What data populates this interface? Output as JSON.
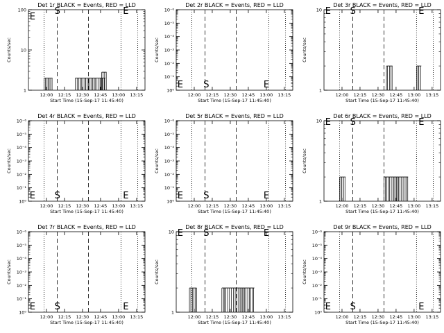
{
  "chart_data": [
    {
      "type": "line",
      "title": "Det 1r BLACK = Events, RED = LLD",
      "xlabel": "Start Time (15-Sep-17 11:45:40)",
      "ylabel": "Counts/sec",
      "scale": "log",
      "yticks": [
        "1",
        "10",
        "100"
      ],
      "xticks": [
        "12:00",
        "12:15",
        "12:30",
        "12:45",
        "13:00",
        "13:15"
      ],
      "markers": [
        {
          "label": "E",
          "x": "11:46"
        },
        {
          "label": "S",
          "x": "12:09"
        },
        {
          "label": "E",
          "x": "13:06"
        }
      ],
      "bursts": [
        {
          "from": "11:58",
          "to": "12:05",
          "y": 2
        },
        {
          "from": "12:24",
          "to": "12:49",
          "y": 2
        },
        {
          "from": "12:46",
          "to": "12:50",
          "y": 2.8
        }
      ]
    },
    {
      "type": "line",
      "title": "Det 2r BLACK = Events, RED = LLD",
      "xlabel": "Start Time (15-Sep-17 11:45:40)",
      "ylabel": "Counts/sec",
      "scale": "log",
      "yticks": [
        "10⁰",
        "10⁻¹",
        "10⁻²",
        "10⁻³",
        "10⁻⁴",
        "10⁻⁵",
        "10⁻⁶"
      ],
      "xticks": [
        "12:00",
        "12:15",
        "12:30",
        "12:45",
        "13:00",
        "13:15"
      ],
      "markers": [
        {
          "label": "E",
          "x": "11:46"
        },
        {
          "label": "S",
          "x": "12:10"
        },
        {
          "label": "E",
          "x": "13:00"
        }
      ],
      "bursts": []
    },
    {
      "type": "line",
      "title": "Det 3r BLACK = Events, RED = LLD",
      "xlabel": "Start Time (15-Sep-17 11:45:40)",
      "ylabel": "Counts/sec",
      "scale": "log",
      "yticks": [
        "1",
        "10"
      ],
      "xticks": [
        "12:00",
        "12:15",
        "12:30",
        "12:45",
        "13:00",
        "13:15"
      ],
      "markers": [
        {
          "label": "E",
          "x": "11:46"
        },
        {
          "label": "S",
          "x": "12:09"
        },
        {
          "label": "E",
          "x": "13:06"
        }
      ],
      "bursts": [
        {
          "from": "12:37",
          "to": "12:42",
          "y": 2
        },
        {
          "from": "13:02",
          "to": "13:06",
          "y": 2
        }
      ]
    },
    {
      "type": "line",
      "title": "Det 4r BLACK = Events, RED = LLD",
      "xlabel": "Start Time (15-Sep-17 11:45:40)",
      "ylabel": "Counts/sec",
      "scale": "log",
      "yticks": [
        "10⁰",
        "10⁻¹",
        "10⁻²",
        "10⁻³",
        "10⁻⁴",
        "10⁻⁵",
        "10⁻⁶"
      ],
      "xticks": [
        "12:00",
        "12:15",
        "12:30",
        "12:45",
        "13:00",
        "13:15"
      ],
      "markers": [
        {
          "label": "E",
          "x": "11:46"
        },
        {
          "label": "S",
          "x": "12:09"
        },
        {
          "label": "E",
          "x": "13:06"
        }
      ],
      "bursts": []
    },
    {
      "type": "line",
      "title": "Det 5r BLACK = Events, RED = LLD",
      "xlabel": "Start Time (15-Sep-17 11:45:40)",
      "ylabel": "Counts/sec",
      "scale": "log",
      "yticks": [
        "10⁰",
        "10⁻¹",
        "10⁻²",
        "10⁻³",
        "10⁻⁴",
        "10⁻⁵",
        "10⁻⁶"
      ],
      "xticks": [
        "12:00",
        "12:15",
        "12:30",
        "12:45",
        "13:00",
        "13:15"
      ],
      "markers": [
        {
          "label": "E",
          "x": "11:46"
        },
        {
          "label": "S",
          "x": "12:10"
        },
        {
          "label": "E",
          "x": "13:00"
        }
      ],
      "bursts": []
    },
    {
      "type": "line",
      "title": "Det 6r BLACK = Events, RED = LLD",
      "xlabel": "Start Time (15-Sep-17 11:45:40)",
      "ylabel": "Counts/sec",
      "scale": "log",
      "yticks": [
        "1",
        "10"
      ],
      "xticks": [
        "12:00",
        "12:15",
        "12:30",
        "12:45",
        "13:00",
        "13:15"
      ],
      "markers": [
        {
          "label": "E",
          "x": "11:46"
        },
        {
          "label": "S",
          "x": "12:09"
        },
        {
          "label": "E",
          "x": "13:06"
        }
      ],
      "bursts": [
        {
          "from": "11:58",
          "to": "12:03",
          "y": 2
        },
        {
          "from": "12:35",
          "to": "12:55",
          "y": 2
        }
      ]
    },
    {
      "type": "line",
      "title": "Det 7r BLACK = Events, RED = LLD",
      "xlabel": "Start Time (15-Sep-17 11:45:40)",
      "ylabel": "Counts/sec",
      "scale": "log",
      "yticks": [
        "10⁰",
        "10⁻¹",
        "10⁻²",
        "10⁻³",
        "10⁻⁴",
        "10⁻⁵",
        "10⁻⁶"
      ],
      "xticks": [
        "12:00",
        "12:15",
        "12:30",
        "12:45",
        "13:00",
        "13:15"
      ],
      "markers": [
        {
          "label": "E",
          "x": "11:46"
        },
        {
          "label": "S",
          "x": "12:09"
        },
        {
          "label": "E",
          "x": "13:06"
        }
      ],
      "bursts": []
    },
    {
      "type": "line",
      "title": "Det 8r BLACK = Events, RED = LLD",
      "xlabel": "Start Time (15-Sep-17 11:45:40)",
      "ylabel": "Counts/sec",
      "scale": "log",
      "yticks": [
        "1",
        "10"
      ],
      "xticks": [
        "12:00",
        "12:15",
        "12:30",
        "12:45",
        "13:00",
        "13:15"
      ],
      "markers": [
        {
          "label": "E",
          "x": "11:46"
        },
        {
          "label": "S",
          "x": "12:10"
        },
        {
          "label": "E",
          "x": "13:00"
        }
      ],
      "bursts": [
        {
          "from": "11:56",
          "to": "12:02",
          "y": 2
        },
        {
          "from": "12:23",
          "to": "12:50",
          "y": 2
        }
      ]
    },
    {
      "type": "line",
      "title": "Det 9r BLACK = Events, RED = LLD",
      "xlabel": "Start Time (15-Sep-17 11:45:40)",
      "ylabel": "Counts/sec",
      "scale": "log",
      "yticks": [
        "10⁰",
        "10⁻¹",
        "10⁻²",
        "10⁻³",
        "10⁻⁴",
        "10⁻⁵",
        "10⁻⁶"
      ],
      "xticks": [
        "12:00",
        "12:15",
        "12:30",
        "12:45",
        "13:00",
        "13:15"
      ],
      "markers": [
        {
          "label": "E",
          "x": "11:46"
        },
        {
          "label": "S",
          "x": "12:09"
        },
        {
          "label": "E",
          "x": "13:06"
        }
      ],
      "bursts": []
    }
  ],
  "colors": {
    "events": "#000000",
    "background": "#ffffff"
  }
}
